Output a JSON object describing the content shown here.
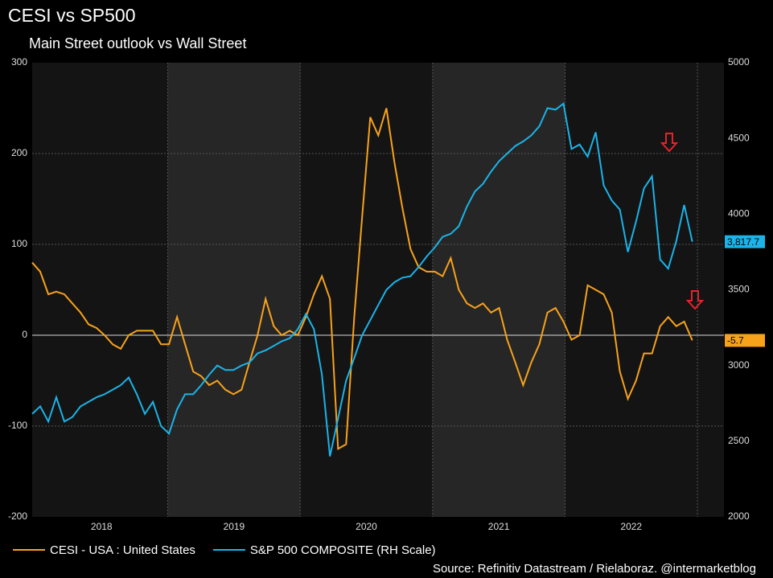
{
  "chart_data": {
    "type": "line",
    "title": "CESI vs SP500",
    "subtitle": "Main Street outlook vs Wall Street",
    "source": "Source: Refinitiv Datastream / Rielaboraz. @intermarketblog",
    "x": [
      2017.976,
      2018.037,
      2018.098,
      2018.158,
      2018.219,
      2018.28,
      2018.341,
      2018.402,
      2018.462,
      2018.523,
      2018.584,
      2018.645,
      2018.705,
      2018.766,
      2018.827,
      2018.888,
      2018.949,
      2019.009,
      2019.07,
      2019.131,
      2019.192,
      2019.252,
      2019.313,
      2019.374,
      2019.435,
      2019.496,
      2019.557,
      2019.617,
      2019.678,
      2019.739,
      2019.8,
      2019.86,
      2019.921,
      2019.982,
      2020.043,
      2020.104,
      2020.164,
      2020.225,
      2020.286,
      2020.347,
      2020.408,
      2020.468,
      2020.529,
      2020.59,
      2020.651,
      2020.712,
      2020.772,
      2020.833,
      2020.894,
      2020.955,
      2021.016,
      2021.076,
      2021.137,
      2021.198,
      2021.259,
      2021.32,
      2021.38,
      2021.441,
      2021.502,
      2021.563,
      2021.624,
      2021.684,
      2021.745,
      2021.806,
      2021.867,
      2021.928,
      2021.988,
      2022.049,
      2022.11,
      2022.171,
      2022.232,
      2022.292,
      2022.353,
      2022.414,
      2022.475,
      2022.536,
      2022.596,
      2022.657,
      2022.718,
      2022.779,
      2022.84,
      2022.9,
      2022.961
    ],
    "series": [
      {
        "name": "CESI - USA : United States",
        "color": "#f7a21b",
        "axis": "y",
        "values": [
          80,
          70,
          45,
          48,
          45,
          35,
          25,
          12,
          8,
          0,
          -10,
          -15,
          0,
          5,
          5,
          5,
          -10,
          -10,
          20,
          -10,
          -40,
          -45,
          -55,
          -50,
          -60,
          -65,
          -60,
          -30,
          0,
          40,
          10,
          0,
          5,
          0,
          20,
          45,
          65,
          40,
          -125,
          -120,
          20,
          130,
          240,
          220,
          250,
          190,
          140,
          95,
          75,
          70,
          70,
          65,
          85,
          50,
          35,
          30,
          35,
          25,
          30,
          -5,
          -30,
          -55,
          -30,
          -10,
          25,
          30,
          15,
          -5,
          0,
          55,
          50,
          45,
          25,
          -40,
          -70,
          -50,
          -20,
          -20,
          10,
          20,
          10,
          15,
          -5.7
        ]
      },
      {
        "name": "S&P 500 COMPOSITE (RH Scale)",
        "color": "#1bb3e8",
        "axis": "y2",
        "last_label": "3,817.7",
        "values": [
          2680,
          2730,
          2630,
          2790,
          2630,
          2660,
          2730,
          2760,
          2790,
          2810,
          2840,
          2870,
          2920,
          2810,
          2680,
          2760,
          2600,
          2550,
          2710,
          2810,
          2810,
          2870,
          2940,
          3000,
          2970,
          2970,
          3000,
          3020,
          3080,
          3100,
          3130,
          3160,
          3180,
          3240,
          3340,
          3240,
          2940,
          2400,
          2650,
          2900,
          3050,
          3200,
          3300,
          3400,
          3500,
          3550,
          3580,
          3590,
          3650,
          3720,
          3780,
          3850,
          3870,
          3920,
          4050,
          4150,
          4200,
          4280,
          4350,
          4400,
          4450,
          4480,
          4520,
          4580,
          4700,
          4690,
          4730,
          4430,
          4460,
          4380,
          4540,
          4190,
          4090,
          4030,
          3750,
          3950,
          4170,
          4250,
          3700,
          3640,
          3820,
          4060,
          3817.7
        ]
      }
    ],
    "xlim": [
      2017.976,
      2023.2
    ],
    "xticks": [
      {
        "value": 2018.5,
        "label": "2018"
      },
      {
        "value": 2019.5,
        "label": "2019"
      },
      {
        "value": 2020.5,
        "label": "2020"
      },
      {
        "value": 2021.5,
        "label": "2021"
      },
      {
        "value": 2022.5,
        "label": "2022"
      }
    ],
    "ylim": [
      -200,
      300
    ],
    "yticks": [
      -200,
      -100,
      0,
      100,
      200,
      300
    ],
    "y2lim": [
      2000,
      5000
    ],
    "y2ticks": [
      2000,
      2500,
      3000,
      3500,
      4000,
      4500,
      5000
    ],
    "grid": true,
    "legend": "bottom"
  }
}
